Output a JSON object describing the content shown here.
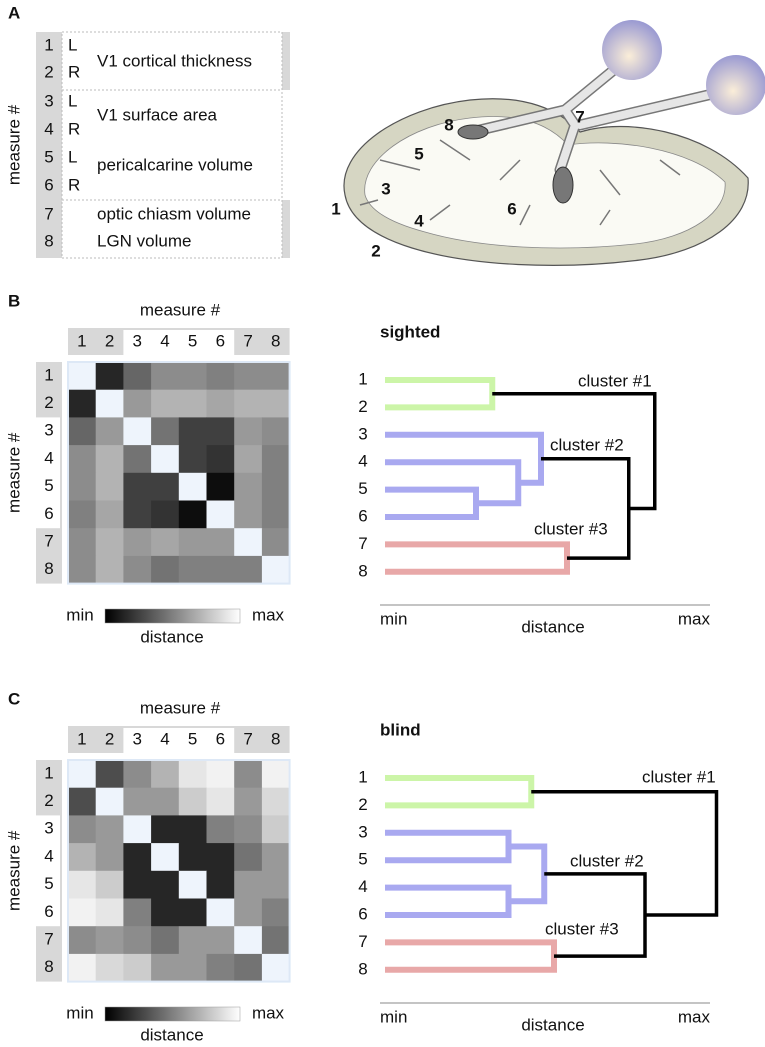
{
  "panel_a": {
    "label": "A",
    "axis_label": "measure #",
    "rows": [
      {
        "number": "1",
        "side": "L"
      },
      {
        "number": "2",
        "side": "R"
      },
      {
        "number": "3",
        "side": "L"
      },
      {
        "number": "4",
        "side": "R"
      },
      {
        "number": "5",
        "side": "L"
      },
      {
        "number": "6",
        "side": "R"
      },
      {
        "number": "7"
      },
      {
        "number": "8"
      }
    ],
    "measures": [
      "V1 cortical thickness",
      "V1 surface area",
      "pericalcarine volume",
      "optic chiasm volume",
      "LGN volume"
    ],
    "brain_labels": [
      "1",
      "2",
      "3",
      "4",
      "5",
      "6",
      "7",
      "8"
    ]
  },
  "panel_b": {
    "label": "B",
    "heatmap": {
      "column_title": "measure #",
      "row_title": "measure #",
      "columns": [
        "1",
        "2",
        "3",
        "4",
        "5",
        "6",
        "7",
        "8"
      ],
      "rows": [
        "1",
        "2",
        "3",
        "4",
        "5",
        "6",
        "7",
        "8"
      ],
      "vlim": [
        0,
        1
      ],
      "values": [
        [
          null,
          0.15,
          0.4,
          0.55,
          0.55,
          0.5,
          0.55,
          0.55
        ],
        [
          0.15,
          null,
          0.6,
          0.7,
          0.7,
          0.65,
          0.7,
          0.7
        ],
        [
          0.4,
          0.6,
          null,
          0.45,
          0.25,
          0.25,
          0.6,
          0.55
        ],
        [
          0.55,
          0.7,
          0.45,
          null,
          0.25,
          0.2,
          0.65,
          0.5
        ],
        [
          0.55,
          0.7,
          0.25,
          0.25,
          null,
          0.05,
          0.6,
          0.5
        ],
        [
          0.5,
          0.65,
          0.25,
          0.2,
          0.05,
          null,
          0.6,
          0.5
        ],
        [
          0.55,
          0.7,
          0.6,
          0.65,
          0.6,
          0.6,
          null,
          0.55
        ],
        [
          0.55,
          0.7,
          0.55,
          0.45,
          0.5,
          0.5,
          0.5,
          null
        ]
      ],
      "colorbar": {
        "min_label": "min",
        "max_label": "max",
        "title": "distance"
      }
    },
    "dendrogram": {
      "title": "sighted",
      "leaves": [
        {
          "label": "1",
          "color": "#ccf5a8"
        },
        {
          "label": "2",
          "color": "#ccf5a8"
        },
        {
          "label": "3",
          "color": "#a9a9f0"
        },
        {
          "label": "4",
          "color": "#a9a9f0"
        },
        {
          "label": "5",
          "color": "#a9a9f0"
        },
        {
          "label": "6",
          "color": "#a9a9f0"
        },
        {
          "label": "7",
          "color": "#e8a8a8"
        },
        {
          "label": "8",
          "color": "#e8a8a8"
        }
      ],
      "merges": [
        {
          "children": [
            4,
            5
          ],
          "height": 0.28,
          "color": "#a9a9f0"
        },
        {
          "children": [
            3,
            8
          ],
          "height": 0.41,
          "color": "#a9a9f0"
        },
        {
          "children": [
            2,
            9
          ],
          "height": 0.48,
          "color": "#a9a9f0"
        },
        {
          "children": [
            0,
            1
          ],
          "height": 0.33,
          "color": "#ccf5a8"
        },
        {
          "children": [
            6,
            7
          ],
          "height": 0.56,
          "color": "#e8a8a8"
        },
        {
          "children": [
            10,
            12
          ],
          "height": 0.75,
          "color": "#000000"
        },
        {
          "children": [
            11,
            13
          ],
          "height": 0.83,
          "color": "#000000"
        }
      ],
      "cluster_labels": [
        "cluster #1",
        "cluster #2",
        "cluster #3"
      ],
      "xlim": [
        0,
        1
      ],
      "axis": {
        "min_label": "min",
        "max_label": "max",
        "title": "distance"
      }
    }
  },
  "panel_c": {
    "label": "C",
    "heatmap": {
      "column_title": "measure #",
      "row_title": "measure #",
      "columns": [
        "1",
        "2",
        "3",
        "4",
        "5",
        "6",
        "7",
        "8"
      ],
      "rows": [
        "1",
        "2",
        "3",
        "4",
        "5",
        "6",
        "7",
        "8"
      ],
      "vlim": [
        0,
        1
      ],
      "values": [
        [
          null,
          0.3,
          0.55,
          0.7,
          0.9,
          0.95,
          0.55,
          0.95
        ],
        [
          0.3,
          null,
          0.6,
          0.6,
          0.8,
          0.9,
          0.6,
          0.85
        ],
        [
          0.55,
          0.6,
          null,
          0.15,
          0.15,
          0.5,
          0.55,
          0.8
        ],
        [
          0.7,
          0.6,
          0.15,
          null,
          0.15,
          0.15,
          0.45,
          0.6
        ],
        [
          0.9,
          0.8,
          0.15,
          0.15,
          null,
          0.15,
          0.6,
          0.6
        ],
        [
          0.95,
          0.9,
          0.5,
          0.15,
          0.15,
          null,
          0.6,
          0.5
        ],
        [
          0.55,
          0.6,
          0.55,
          0.45,
          0.6,
          0.6,
          null,
          0.45
        ],
        [
          0.95,
          0.85,
          0.8,
          0.6,
          0.6,
          0.5,
          0.45,
          null
        ]
      ],
      "colorbar": {
        "min_label": "min",
        "max_label": "max",
        "title": "distance"
      }
    },
    "dendrogram": {
      "title": "blind",
      "leaves": [
        {
          "label": "1",
          "color": "#ccf5a8"
        },
        {
          "label": "2",
          "color": "#ccf5a8"
        },
        {
          "label": "3",
          "color": "#a9a9f0"
        },
        {
          "label": "5",
          "color": "#a9a9f0"
        },
        {
          "label": "4",
          "color": "#a9a9f0"
        },
        {
          "label": "6",
          "color": "#a9a9f0"
        },
        {
          "label": "7",
          "color": "#e8a8a8"
        },
        {
          "label": "8",
          "color": "#e8a8a8"
        }
      ],
      "merges": [
        {
          "children": [
            0,
            1
          ],
          "height": 0.45,
          "color": "#ccf5a8"
        },
        {
          "children": [
            2,
            3
          ],
          "height": 0.38,
          "color": "#a9a9f0"
        },
        {
          "children": [
            4,
            5
          ],
          "height": 0.38,
          "color": "#a9a9f0"
        },
        {
          "children": [
            9,
            10
          ],
          "height": 0.49,
          "color": "#a9a9f0"
        },
        {
          "children": [
            6,
            7
          ],
          "height": 0.52,
          "color": "#e8a8a8"
        },
        {
          "children": [
            11,
            12
          ],
          "height": 0.8,
          "color": "#000000"
        },
        {
          "children": [
            8,
            13
          ],
          "height": 1.02,
          "color": "#000000"
        }
      ],
      "cluster_labels": [
        "cluster #1",
        "cluster #2",
        "cluster #3"
      ],
      "xlim": [
        0,
        1
      ],
      "axis": {
        "min_label": "min",
        "max_label": "max",
        "title": "distance"
      }
    }
  }
}
